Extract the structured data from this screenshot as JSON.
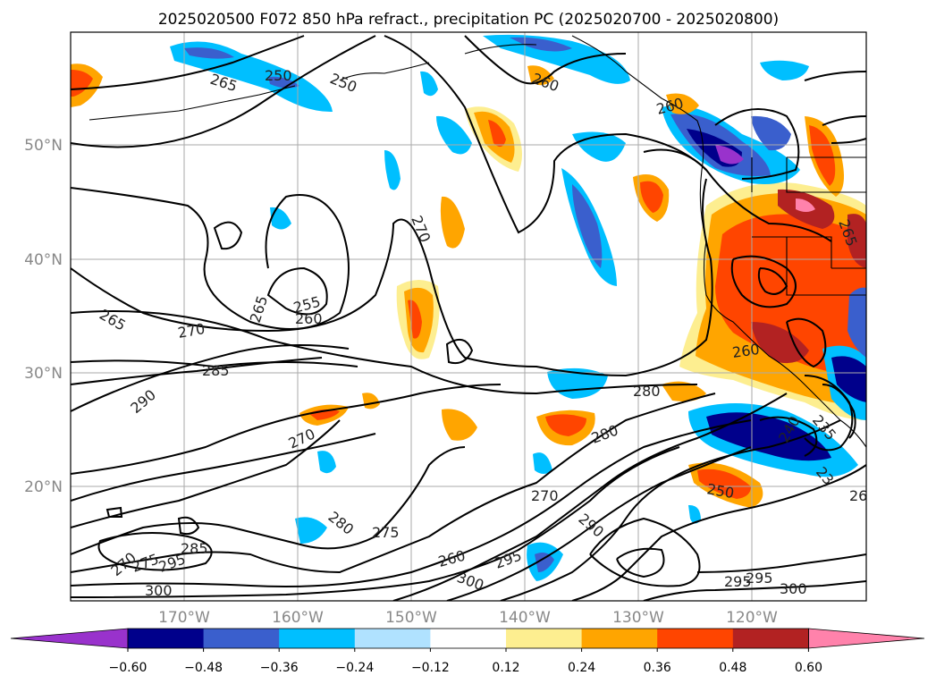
{
  "title": "2025020500 F072 850 hPa refract., precipitation PC (2025020700 - 2025020800)",
  "lat_labels": [
    "50°N",
    "40°N",
    "30°N",
    "20°N"
  ],
  "lon_labels": [
    "170°W",
    "160°W",
    "150°W",
    "140°W",
    "130°W",
    "120°W"
  ],
  "colorbar": {
    "colors": [
      "#9932cc",
      "#00008b",
      "#3a5fcd",
      "#00bfff",
      "#b0e2ff",
      "#ffffff",
      "#fdee90",
      "#ffa500",
      "#ff4500",
      "#b22222",
      "#ff82ab"
    ],
    "tick_labels": [
      "−0.60",
      "−0.48",
      "−0.36",
      "−0.24",
      "−0.12",
      "0.12",
      "0.24",
      "0.36",
      "0.48",
      "0.60"
    ]
  },
  "contour_labels": [
    "265",
    "250",
    "250",
    "260",
    "260",
    "270",
    "265",
    "255",
    "260",
    "270",
    "265",
    "285",
    "290",
    "280",
    "270",
    "280",
    "275",
    "270",
    "290",
    "260",
    "295",
    "300",
    "285",
    "270",
    "275",
    "295",
    "300",
    "295",
    "250",
    "240",
    "235",
    "295",
    "300",
    "26",
    "23",
    "260",
    "280",
    "265"
  ]
}
